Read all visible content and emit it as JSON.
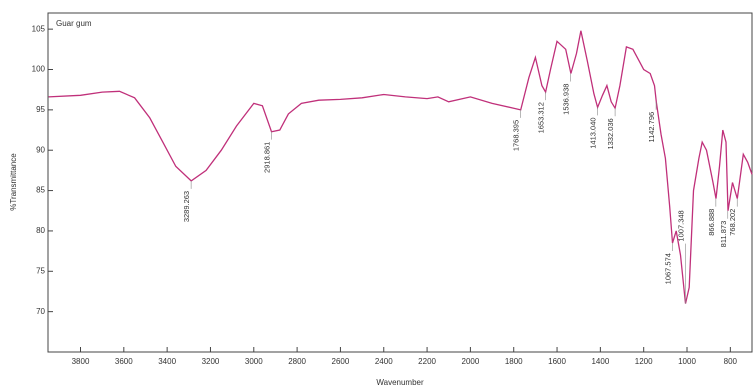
{
  "chart_data": {
    "type": "line",
    "legend_text": "Guar gum",
    "xlabel": "Wavenumber",
    "ylabel": "%Transmittance",
    "xlim": [
      3950,
      700
    ],
    "ylim": [
      65,
      107
    ],
    "xticks": [
      3800,
      3600,
      3400,
      3200,
      3000,
      2800,
      2600,
      2400,
      2200,
      2000,
      1800,
      1600,
      1400,
      1200,
      1000,
      800
    ],
    "yticks": [
      70,
      75,
      80,
      85,
      90,
      95,
      100,
      105
    ],
    "series": [
      {
        "color": "#c0307a",
        "x": [
          3947,
          3800,
          3700,
          3620,
          3550,
          3480,
          3420,
          3360,
          3289,
          3220,
          3150,
          3080,
          3000,
          2960,
          2918,
          2880,
          2840,
          2780,
          2700,
          2600,
          2500,
          2400,
          2300,
          2200,
          2150,
          2100,
          2000,
          1900,
          1800,
          1768,
          1730,
          1700,
          1670,
          1653,
          1630,
          1600,
          1560,
          1536,
          1510,
          1490,
          1460,
          1430,
          1413,
          1390,
          1370,
          1350,
          1332,
          1310,
          1280,
          1250,
          1220,
          1200,
          1170,
          1150,
          1142,
          1120,
          1100,
          1080,
          1067,
          1050,
          1030,
          1007,
          990,
          970,
          945,
          930,
          910,
          880,
          866,
          850,
          835,
          820,
          811,
          790,
          768,
          740,
          720,
          700
        ],
        "values": [
          96.6,
          96.8,
          97.2,
          97.3,
          96.5,
          94,
          91,
          88,
          86.2,
          87.5,
          90,
          93,
          95.8,
          95.5,
          92.3,
          92.5,
          94.5,
          95.8,
          96.2,
          96.3,
          96.5,
          96.9,
          96.6,
          96.4,
          96.6,
          96.0,
          96.6,
          95.8,
          95.2,
          95.0,
          99,
          101.5,
          98,
          97.2,
          100,
          103.5,
          102.5,
          99.5,
          102,
          104.8,
          101,
          97,
          95.3,
          96.8,
          98,
          96,
          95.2,
          98,
          102.8,
          102.5,
          101,
          100,
          99.5,
          98,
          96,
          92,
          89,
          83,
          78.5,
          80,
          77,
          71,
          73,
          85,
          89,
          91,
          90,
          86,
          84,
          88,
          92.5,
          91,
          82.5,
          86,
          84,
          89.5,
          88.5,
          87
        ]
      }
    ],
    "annotations": [
      {
        "label": "3289.263",
        "x": 3289.263,
        "y": 86.2,
        "position": "below"
      },
      {
        "label": "2918.861",
        "x": 2918.861,
        "y": 92.3,
        "position": "below"
      },
      {
        "label": "1768.395",
        "x": 1768.395,
        "y": 95.0,
        "position": "below"
      },
      {
        "label": "1653.312",
        "x": 1653.312,
        "y": 97.2,
        "position": "below"
      },
      {
        "label": "1536.938",
        "x": 1536.938,
        "y": 99.5,
        "position": "below"
      },
      {
        "label": "1413.040",
        "x": 1413.04,
        "y": 95.3,
        "position": "below"
      },
      {
        "label": "1332.036",
        "x": 1332.036,
        "y": 95.2,
        "position": "below"
      },
      {
        "label": "1142.796",
        "x": 1142.796,
        "y": 96,
        "position": "below"
      },
      {
        "label": "1067.574",
        "x": 1067.574,
        "y": 78.5,
        "position": "below"
      },
      {
        "label": "1007.348",
        "x": 1007.348,
        "y": 71,
        "position": "above"
      },
      {
        "label": "866.888",
        "x": 866.888,
        "y": 84,
        "position": "below"
      },
      {
        "label": "811.873",
        "x": 811.873,
        "y": 82.5,
        "position": "below"
      },
      {
        "label": "768.202",
        "x": 768.202,
        "y": 84,
        "position": "below"
      }
    ]
  }
}
